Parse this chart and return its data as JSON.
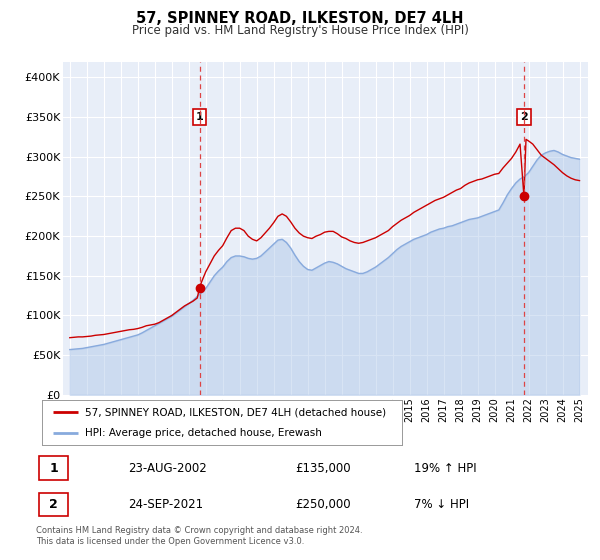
{
  "title": "57, SPINNEY ROAD, ILKESTON, DE7 4LH",
  "subtitle": "Price paid vs. HM Land Registry's House Price Index (HPI)",
  "fig_bg_color": "#ffffff",
  "plot_bg_color": "#e8eef8",
  "grid_color": "#ffffff",
  "legend_label_red": "57, SPINNEY ROAD, ILKESTON, DE7 4LH (detached house)",
  "legend_label_blue": "HPI: Average price, detached house, Erewash",
  "transaction1_date": "23-AUG-2002",
  "transaction1_price": "£135,000",
  "transaction1_hpi": "19% ↑ HPI",
  "transaction1_year": 2002.64,
  "transaction1_value": 135000,
  "transaction2_date": "24-SEP-2021",
  "transaction2_price": "£250,000",
  "transaction2_hpi": "7% ↓ HPI",
  "transaction2_year": 2021.73,
  "transaction2_value": 250000,
  "red_color": "#cc0000",
  "blue_color": "#88aadd",
  "blue_fill_color": "#aac4e8",
  "marker_color": "#cc0000",
  "vline_color": "#dd4444",
  "footnote": "Contains HM Land Registry data © Crown copyright and database right 2024.\nThis data is licensed under the Open Government Licence v3.0.",
  "ylim": [
    0,
    420000
  ],
  "xlim_start": 1994.6,
  "xlim_end": 2025.5,
  "yticks": [
    0,
    50000,
    100000,
    150000,
    200000,
    250000,
    300000,
    350000,
    400000
  ],
  "ytick_labels": [
    "£0",
    "£50K",
    "£100K",
    "£150K",
    "£200K",
    "£250K",
    "£300K",
    "£350K",
    "£400K"
  ],
  "xticks": [
    1995,
    1996,
    1997,
    1998,
    1999,
    2000,
    2001,
    2002,
    2003,
    2004,
    2005,
    2006,
    2007,
    2008,
    2009,
    2010,
    2011,
    2012,
    2013,
    2014,
    2015,
    2016,
    2017,
    2018,
    2019,
    2020,
    2021,
    2022,
    2023,
    2024,
    2025
  ],
  "red_data": [
    [
      1995.0,
      72000
    ],
    [
      1995.25,
      72500
    ],
    [
      1995.5,
      73000
    ],
    [
      1995.75,
      73000
    ],
    [
      1996.0,
      73500
    ],
    [
      1996.25,
      74000
    ],
    [
      1996.5,
      75000
    ],
    [
      1996.75,
      75500
    ],
    [
      1997.0,
      76000
    ],
    [
      1997.25,
      77000
    ],
    [
      1997.5,
      78000
    ],
    [
      1997.75,
      79000
    ],
    [
      1998.0,
      80000
    ],
    [
      1998.25,
      81000
    ],
    [
      1998.5,
      82000
    ],
    [
      1998.75,
      82500
    ],
    [
      1999.0,
      83500
    ],
    [
      1999.25,
      85000
    ],
    [
      1999.5,
      87000
    ],
    [
      1999.75,
      88000
    ],
    [
      2000.0,
      89000
    ],
    [
      2000.25,
      91000
    ],
    [
      2000.5,
      94000
    ],
    [
      2000.75,
      97000
    ],
    [
      2001.0,
      100000
    ],
    [
      2001.25,
      104000
    ],
    [
      2001.5,
      108000
    ],
    [
      2001.75,
      112000
    ],
    [
      2002.0,
      115000
    ],
    [
      2002.25,
      118000
    ],
    [
      2002.5,
      122000
    ],
    [
      2002.64,
      135000
    ],
    [
      2002.75,
      142000
    ],
    [
      2003.0,
      155000
    ],
    [
      2003.25,
      165000
    ],
    [
      2003.5,
      175000
    ],
    [
      2003.75,
      182000
    ],
    [
      2004.0,
      188000
    ],
    [
      2004.25,
      198000
    ],
    [
      2004.5,
      207000
    ],
    [
      2004.75,
      210000
    ],
    [
      2005.0,
      210000
    ],
    [
      2005.25,
      207000
    ],
    [
      2005.5,
      200000
    ],
    [
      2005.75,
      196000
    ],
    [
      2006.0,
      194000
    ],
    [
      2006.25,
      198000
    ],
    [
      2006.5,
      204000
    ],
    [
      2006.75,
      210000
    ],
    [
      2007.0,
      217000
    ],
    [
      2007.25,
      225000
    ],
    [
      2007.5,
      228000
    ],
    [
      2007.75,
      225000
    ],
    [
      2008.0,
      218000
    ],
    [
      2008.25,
      210000
    ],
    [
      2008.5,
      204000
    ],
    [
      2008.75,
      200000
    ],
    [
      2009.0,
      198000
    ],
    [
      2009.25,
      197000
    ],
    [
      2009.5,
      200000
    ],
    [
      2009.75,
      202000
    ],
    [
      2010.0,
      205000
    ],
    [
      2010.25,
      206000
    ],
    [
      2010.5,
      206000
    ],
    [
      2010.75,
      203000
    ],
    [
      2011.0,
      199000
    ],
    [
      2011.25,
      197000
    ],
    [
      2011.5,
      194000
    ],
    [
      2011.75,
      192000
    ],
    [
      2012.0,
      191000
    ],
    [
      2012.25,
      192000
    ],
    [
      2012.5,
      194000
    ],
    [
      2012.75,
      196000
    ],
    [
      2013.0,
      198000
    ],
    [
      2013.25,
      201000
    ],
    [
      2013.5,
      204000
    ],
    [
      2013.75,
      207000
    ],
    [
      2014.0,
      212000
    ],
    [
      2014.25,
      216000
    ],
    [
      2014.5,
      220000
    ],
    [
      2014.75,
      223000
    ],
    [
      2015.0,
      226000
    ],
    [
      2015.25,
      230000
    ],
    [
      2015.5,
      233000
    ],
    [
      2015.75,
      236000
    ],
    [
      2016.0,
      239000
    ],
    [
      2016.25,
      242000
    ],
    [
      2016.5,
      245000
    ],
    [
      2016.75,
      247000
    ],
    [
      2017.0,
      249000
    ],
    [
      2017.25,
      252000
    ],
    [
      2017.5,
      255000
    ],
    [
      2017.75,
      258000
    ],
    [
      2018.0,
      260000
    ],
    [
      2018.25,
      264000
    ],
    [
      2018.5,
      267000
    ],
    [
      2018.75,
      269000
    ],
    [
      2019.0,
      271000
    ],
    [
      2019.25,
      272000
    ],
    [
      2019.5,
      274000
    ],
    [
      2019.75,
      276000
    ],
    [
      2020.0,
      278000
    ],
    [
      2020.25,
      279000
    ],
    [
      2020.5,
      286000
    ],
    [
      2020.75,
      292000
    ],
    [
      2021.0,
      298000
    ],
    [
      2021.25,
      306000
    ],
    [
      2021.5,
      316000
    ],
    [
      2021.73,
      250000
    ],
    [
      2021.85,
      322000
    ],
    [
      2022.0,
      320000
    ],
    [
      2022.25,
      316000
    ],
    [
      2022.5,
      309000
    ],
    [
      2022.75,
      302000
    ],
    [
      2023.0,
      298000
    ],
    [
      2023.25,
      294000
    ],
    [
      2023.5,
      290000
    ],
    [
      2023.75,
      285000
    ],
    [
      2024.0,
      280000
    ],
    [
      2024.25,
      276000
    ],
    [
      2024.5,
      273000
    ],
    [
      2024.75,
      271000
    ],
    [
      2025.0,
      270000
    ]
  ],
  "blue_data": [
    [
      1995.0,
      57000
    ],
    [
      1995.25,
      57500
    ],
    [
      1995.5,
      58000
    ],
    [
      1995.75,
      58500
    ],
    [
      1996.0,
      59500
    ],
    [
      1996.25,
      60500
    ],
    [
      1996.5,
      61500
    ],
    [
      1996.75,
      62500
    ],
    [
      1997.0,
      63500
    ],
    [
      1997.25,
      65000
    ],
    [
      1997.5,
      66500
    ],
    [
      1997.75,
      68000
    ],
    [
      1998.0,
      69500
    ],
    [
      1998.25,
      71000
    ],
    [
      1998.5,
      72500
    ],
    [
      1998.75,
      74000
    ],
    [
      1999.0,
      75500
    ],
    [
      1999.25,
      78000
    ],
    [
      1999.5,
      81000
    ],
    [
      1999.75,
      84000
    ],
    [
      2000.0,
      87000
    ],
    [
      2000.25,
      90000
    ],
    [
      2000.5,
      93000
    ],
    [
      2000.75,
      96000
    ],
    [
      2001.0,
      99000
    ],
    [
      2001.25,
      103000
    ],
    [
      2001.5,
      107000
    ],
    [
      2001.75,
      111000
    ],
    [
      2002.0,
      115000
    ],
    [
      2002.25,
      119000
    ],
    [
      2002.5,
      124000
    ],
    [
      2002.75,
      129000
    ],
    [
      2003.0,
      134000
    ],
    [
      2003.25,
      142000
    ],
    [
      2003.5,
      150000
    ],
    [
      2003.75,
      156000
    ],
    [
      2004.0,
      161000
    ],
    [
      2004.25,
      168000
    ],
    [
      2004.5,
      173000
    ],
    [
      2004.75,
      175000
    ],
    [
      2005.0,
      175000
    ],
    [
      2005.25,
      174000
    ],
    [
      2005.5,
      172000
    ],
    [
      2005.75,
      171000
    ],
    [
      2006.0,
      172000
    ],
    [
      2006.25,
      175000
    ],
    [
      2006.5,
      180000
    ],
    [
      2006.75,
      185000
    ],
    [
      2007.0,
      190000
    ],
    [
      2007.25,
      195000
    ],
    [
      2007.5,
      196000
    ],
    [
      2007.75,
      192000
    ],
    [
      2008.0,
      185000
    ],
    [
      2008.25,
      176000
    ],
    [
      2008.5,
      168000
    ],
    [
      2008.75,
      162000
    ],
    [
      2009.0,
      158000
    ],
    [
      2009.25,
      157000
    ],
    [
      2009.5,
      160000
    ],
    [
      2009.75,
      163000
    ],
    [
      2010.0,
      166000
    ],
    [
      2010.25,
      168000
    ],
    [
      2010.5,
      167000
    ],
    [
      2010.75,
      165000
    ],
    [
      2011.0,
      162000
    ],
    [
      2011.25,
      159000
    ],
    [
      2011.5,
      157000
    ],
    [
      2011.75,
      155000
    ],
    [
      2012.0,
      153000
    ],
    [
      2012.25,
      153000
    ],
    [
      2012.5,
      155000
    ],
    [
      2012.75,
      158000
    ],
    [
      2013.0,
      161000
    ],
    [
      2013.25,
      165000
    ],
    [
      2013.5,
      169000
    ],
    [
      2013.75,
      173000
    ],
    [
      2014.0,
      178000
    ],
    [
      2014.25,
      183000
    ],
    [
      2014.5,
      187000
    ],
    [
      2014.75,
      190000
    ],
    [
      2015.0,
      193000
    ],
    [
      2015.25,
      196000
    ],
    [
      2015.5,
      198000
    ],
    [
      2015.75,
      200000
    ],
    [
      2016.0,
      202000
    ],
    [
      2016.25,
      205000
    ],
    [
      2016.5,
      207000
    ],
    [
      2016.75,
      209000
    ],
    [
      2017.0,
      210000
    ],
    [
      2017.25,
      212000
    ],
    [
      2017.5,
      213000
    ],
    [
      2017.75,
      215000
    ],
    [
      2018.0,
      217000
    ],
    [
      2018.25,
      219000
    ],
    [
      2018.5,
      221000
    ],
    [
      2018.75,
      222000
    ],
    [
      2019.0,
      223000
    ],
    [
      2019.25,
      225000
    ],
    [
      2019.5,
      227000
    ],
    [
      2019.75,
      229000
    ],
    [
      2020.0,
      231000
    ],
    [
      2020.25,
      233000
    ],
    [
      2020.5,
      242000
    ],
    [
      2020.75,
      252000
    ],
    [
      2021.0,
      260000
    ],
    [
      2021.25,
      267000
    ],
    [
      2021.5,
      272000
    ],
    [
      2021.75,
      275000
    ],
    [
      2022.0,
      280000
    ],
    [
      2022.25,
      288000
    ],
    [
      2022.5,
      296000
    ],
    [
      2022.75,
      302000
    ],
    [
      2023.0,
      305000
    ],
    [
      2023.25,
      307000
    ],
    [
      2023.5,
      308000
    ],
    [
      2023.75,
      306000
    ],
    [
      2024.0,
      303000
    ],
    [
      2024.25,
      301000
    ],
    [
      2024.5,
      299000
    ],
    [
      2024.75,
      298000
    ],
    [
      2025.0,
      297000
    ]
  ]
}
